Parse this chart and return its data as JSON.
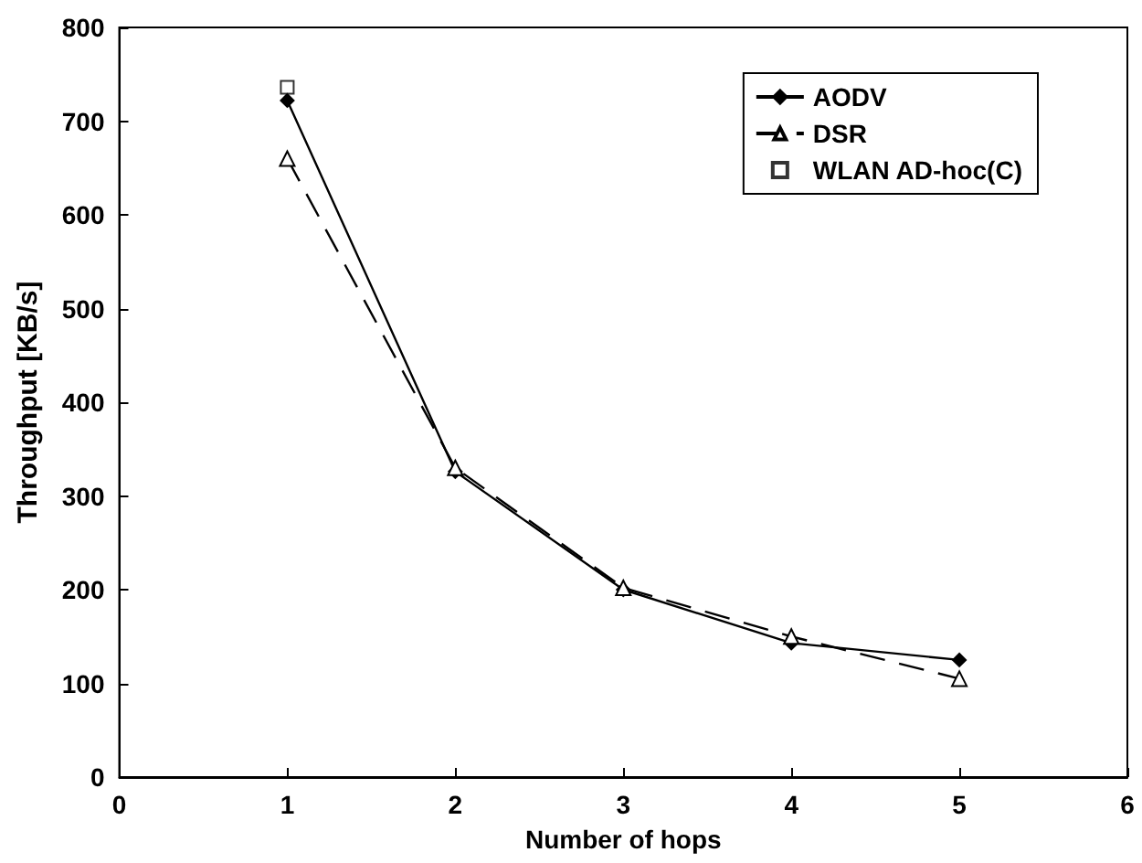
{
  "chart_data": {
    "type": "line",
    "xlabel": "Number of hops",
    "ylabel": "Throughput [KB/s]",
    "x": [
      1,
      2,
      3,
      4,
      5
    ],
    "series": [
      {
        "name": "AODV",
        "color": "#000000",
        "values": [
          722,
          326,
          200,
          143,
          125
        ],
        "marker": "diamond",
        "line_style": "solid"
      },
      {
        "name": "DSR",
        "color": "#000000",
        "values": [
          660,
          330,
          202,
          150,
          105
        ],
        "marker": "triangle",
        "line_style": "dashed"
      },
      {
        "name": "WLAN AD-hoc(C)",
        "type": "scatter",
        "color": "#000000",
        "x": [
          1
        ],
        "values": [
          736
        ],
        "marker": "square"
      }
    ],
    "xlim": [
      0,
      6
    ],
    "xticks": [
      0,
      1,
      2,
      3,
      4,
      5,
      6
    ],
    "ylim": [
      0,
      800
    ],
    "yticks": [
      0,
      100,
      200,
      300,
      400,
      500,
      600,
      700,
      800
    ],
    "grid": false,
    "legend": "top right"
  }
}
